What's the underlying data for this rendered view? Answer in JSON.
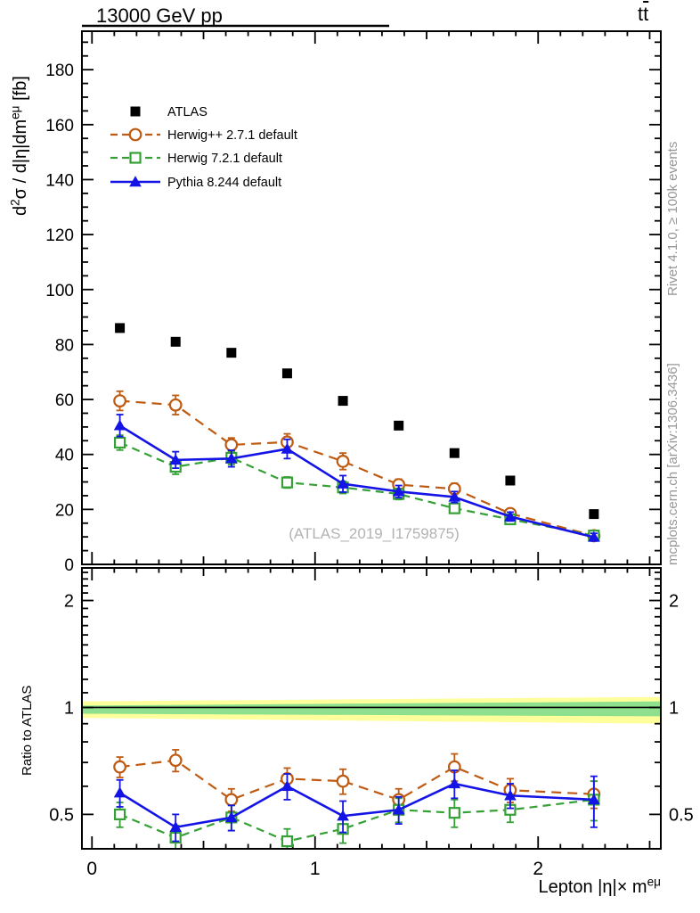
{
  "header": {
    "title_left": "13000 GeV pp",
    "title_right_parts": [
      {
        "t": "t"
      },
      {
        "t": "t",
        "bar": true
      }
    ]
  },
  "side_texts": {
    "top_right": "Rivet 4.1.0, ≥ 100k events",
    "bottom_right": "mcplots.cern.ch [arXiv:1306.3436]"
  },
  "watermark": "(ATLAS_2019_I1759875)",
  "colors": {
    "atlas": "#000000",
    "herwigpp": "#bf5a12",
    "herwig7": "#35a035",
    "pythia": "#1414e6",
    "band_yellow": "#ffff9c",
    "band_green": "#8ee08e",
    "gray_text": "#979797",
    "watermark_gray": "#b3b3b3"
  },
  "chart_data": [
    {
      "type": "line",
      "panel": "main",
      "ylabel_parts": [
        {
          "t": "d"
        },
        {
          "t": "2",
          "sup": true
        },
        {
          "t": "σ / d|η|dm",
          "sup": false
        },
        {
          "t": "eμ",
          "sup": true
        },
        {
          "t": " [fb]"
        }
      ],
      "xlabel_parts": [
        {
          "t": "Lepton |η|× m"
        },
        {
          "t": "eμ",
          "sup": true
        }
      ],
      "xlim": [
        -0.045,
        2.55
      ],
      "ylim": [
        0,
        194
      ],
      "grid": false,
      "legend_position": "top-left-inside",
      "xticks": {
        "major": [
          0,
          1,
          2
        ],
        "major_labels": [
          "0",
          "1",
          "2"
        ],
        "mid": [
          0.5,
          1.5,
          2.5
        ],
        "minor_step": 0.1
      },
      "yticks": {
        "major_step": 20,
        "labeled": [
          0,
          20,
          40,
          60,
          80,
          100,
          120,
          140,
          160,
          180
        ],
        "labels": [
          "0",
          "20",
          "40",
          "60",
          "80",
          "100",
          "120",
          "140",
          "160",
          "180"
        ],
        "minor_step": 5
      },
      "x": [
        0.125,
        0.375,
        0.625,
        0.875,
        1.125,
        1.375,
        1.625,
        1.875,
        2.25
      ],
      "series": [
        {
          "name": "ATLAS",
          "color": "#000000",
          "marker": "square-filled",
          "line": "none",
          "values": [
            86,
            81,
            77,
            69.5,
            59.5,
            50.5,
            40.5,
            30.5,
            18.3
          ]
        },
        {
          "name": "Herwig++ 2.7.1 default",
          "color": "#bf5a12",
          "marker": "circle-open",
          "line": "dashed",
          "values": [
            59.5,
            58,
            43.5,
            44.5,
            37.5,
            29,
            27.5,
            18.5,
            10.4
          ],
          "errors": [
            3.5,
            3.5,
            2.5,
            3,
            3,
            2,
            2,
            1.7,
            1.2
          ]
        },
        {
          "name": "Herwig 7.2.1 default",
          "color": "#35a035",
          "marker": "square-open",
          "line": "dashed",
          "values": [
            44.3,
            35.5,
            38.8,
            29.8,
            28,
            25.6,
            20.4,
            16.4,
            10.5
          ],
          "errors": [
            2.7,
            2.7,
            2.5,
            2,
            2.2,
            2,
            1.7,
            1.5,
            1.1
          ]
        },
        {
          "name": "Pythia 8.244 default",
          "color": "#1414e6",
          "marker": "triangle-filled",
          "line": "solid",
          "values": [
            50.5,
            38,
            38.5,
            42,
            29.3,
            26.5,
            24.5,
            17.4,
            9.9
          ],
          "errors": [
            4,
            3,
            3,
            3.5,
            3,
            2.2,
            2,
            1.6,
            1.4
          ]
        }
      ]
    },
    {
      "type": "ratio",
      "panel": "ratio",
      "ylabel": "Ratio to ATLAS",
      "yscale": "log",
      "ylim": [
        0.4,
        2.47
      ],
      "reference_line": 1,
      "yticks": {
        "labeled": [
          0.5,
          1,
          2
        ],
        "labels": [
          "0.5",
          "1",
          "2"
        ],
        "minor": [
          0.4,
          0.6,
          0.7,
          0.8,
          0.9,
          1.1,
          1.2,
          1.3,
          1.4,
          1.5,
          1.6,
          1.7,
          1.8,
          1.9,
          2.1,
          2.2,
          2.3,
          2.4
        ]
      },
      "bands": [
        {
          "name": "data-uncertainty-outer",
          "color": "#ffff9c",
          "lo": [
            0.935,
            0.9
          ],
          "hi": [
            1.04,
            1.07
          ]
        },
        {
          "name": "data-uncertainty-inner",
          "color": "#8ee08e",
          "lo": [
            0.96,
            0.944
          ],
          "hi": [
            1.012,
            1.04
          ]
        }
      ],
      "x": [
        0.125,
        0.375,
        0.625,
        0.875,
        1.125,
        1.375,
        1.625,
        1.875,
        2.25
      ],
      "series": [
        {
          "name": "Herwig++ 2.7.1 default",
          "color": "#bf5a12",
          "marker": "circle-open",
          "line": "dashed",
          "values": [
            0.68,
            0.71,
            0.55,
            0.63,
            0.62,
            0.55,
            0.68,
            0.585,
            0.57
          ],
          "errors": [
            0.045,
            0.05,
            0.04,
            0.045,
            0.05,
            0.04,
            0.06,
            0.045,
            0.05
          ]
        },
        {
          "name": "Herwig 7.2.1 default",
          "color": "#35a035",
          "marker": "square-open",
          "line": "dashed",
          "values": [
            0.5,
            0.43,
            0.49,
            0.42,
            0.455,
            0.515,
            0.505,
            0.515,
            0.55
          ],
          "errors": [
            0.04,
            0.035,
            0.04,
            0.035,
            0.04,
            0.04,
            0.045,
            0.04,
            0.07
          ]
        },
        {
          "name": "Pythia 8.244 default",
          "color": "#1414e6",
          "marker": "triangle-filled",
          "line": "solid",
          "values": [
            0.575,
            0.46,
            0.49,
            0.6,
            0.495,
            0.515,
            0.61,
            0.565,
            0.55
          ],
          "errors": [
            0.05,
            0.04,
            0.04,
            0.05,
            0.05,
            0.045,
            0.055,
            0.045,
            0.09
          ]
        }
      ]
    }
  ]
}
